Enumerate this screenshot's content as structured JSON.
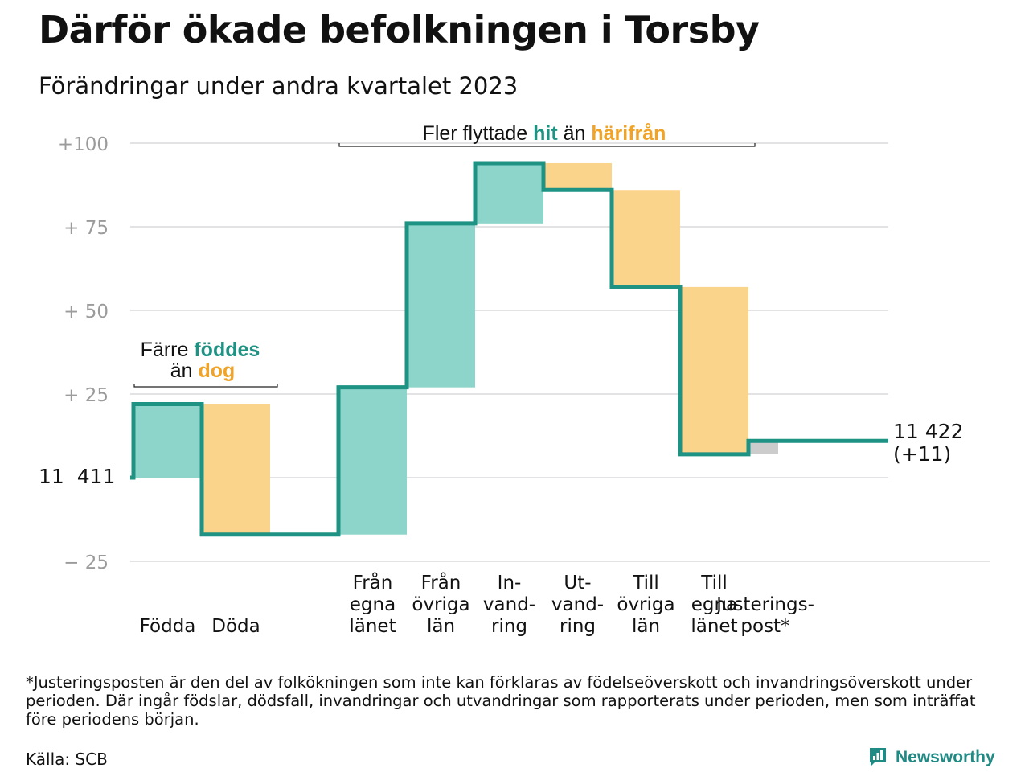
{
  "title": "Därför ökade befolkningen i Torsby",
  "subtitle": "Förändringar under andra kvartalet 2023",
  "footnote": "*Justeringsposten är den del av folkökningen som inte kan förklaras av födelseöverskott och invandringsöverskott under perioden. Där ingår födslar, dödsfall, invandringar och utvandringar som rapporterats under perioden, men som inträffat före periodens början.",
  "source": "Källa: SCB",
  "logo_text": "Newsworthy",
  "colors": {
    "increase": "#8dd5ca",
    "decrease": "#fbd48b",
    "adjustment": "#cccccc",
    "line": "#1e9283",
    "hit": "#1e9283",
    "harifran": "#f0a327",
    "grid": "#e3e3e6",
    "tick": "#9b9b9b"
  },
  "annotations": {
    "births": {
      "line1_pre": "Färre ",
      "line1_em": "föddes",
      "line2_pre": "än ",
      "line2_em": "dog"
    },
    "migration": {
      "pre": "Fler flyttade ",
      "em1": "hit",
      "mid": " än ",
      "em2": "härifrån"
    }
  },
  "chart_data": {
    "type": "waterfall",
    "start_label": "11  411",
    "start_value": 11411,
    "end_label_line1": "11 422",
    "end_label_line2": "(+11)",
    "end_value": 11422,
    "yticks": [
      100,
      75,
      50,
      25,
      -25
    ],
    "ytick_labels": [
      "+100",
      "+  75",
      "+  50",
      "+  25",
      "−  25"
    ],
    "ylim": [
      -30,
      102
    ],
    "steps": [
      {
        "name": "births",
        "label": "Födda",
        "label_lines": [
          "Födda"
        ],
        "change": 22,
        "kind": "increase"
      },
      {
        "name": "deaths",
        "label": "Döda",
        "label_lines": [
          "Döda"
        ],
        "change": -39,
        "kind": "decrease"
      },
      {
        "name": "gap",
        "label": "",
        "label_lines": [],
        "change": 0,
        "kind": "gap"
      },
      {
        "name": "from-own-county",
        "label": "Från egna länet",
        "label_lines": [
          "Från",
          "egna",
          "länet"
        ],
        "change": 44,
        "kind": "increase"
      },
      {
        "name": "from-other-counties",
        "label": "Från övriga län",
        "label_lines": [
          "Från",
          "övriga",
          "län"
        ],
        "change": 49,
        "kind": "increase"
      },
      {
        "name": "immigration",
        "label": "In-vand-ring",
        "label_lines": [
          "In-",
          "vand-",
          "ring"
        ],
        "change": 18,
        "kind": "increase"
      },
      {
        "name": "emigration",
        "label": "Ut-vand-ring",
        "label_lines": [
          "Ut-",
          "vand-",
          "ring"
        ],
        "change": -8,
        "kind": "decrease"
      },
      {
        "name": "to-other-counties",
        "label": "Till övriga län",
        "label_lines": [
          "Till",
          "övriga",
          "län"
        ],
        "change": -29,
        "kind": "decrease"
      },
      {
        "name": "to-own-county",
        "label": "Till egna länet",
        "label_lines": [
          "Till",
          "egna",
          "länet"
        ],
        "change": -50,
        "kind": "decrease"
      },
      {
        "name": "adjustment",
        "label": "Justerings-post*",
        "label_lines": [
          "Justerings-",
          "post*"
        ],
        "change": 4,
        "kind": "adjustment"
      }
    ]
  }
}
